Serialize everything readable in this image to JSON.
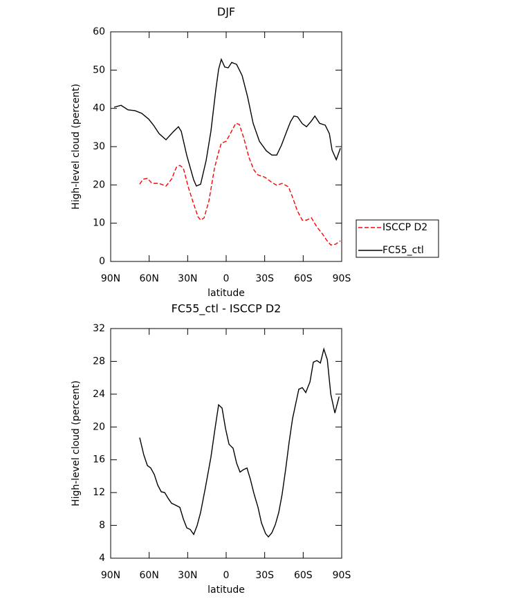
{
  "chart_data": [
    {
      "type": "line",
      "title": "DJF",
      "xlabel": "latitude",
      "ylabel": "High-level cloud (percent)",
      "xlim": [
        90,
        -90
      ],
      "xticks": [
        {
          "value": 90,
          "label": "90N"
        },
        {
          "value": 60,
          "label": "60N"
        },
        {
          "value": 30,
          "label": "30N"
        },
        0,
        {
          "value": -30,
          "label": "30S"
        },
        {
          "value": -60,
          "label": "60S"
        },
        {
          "value": -90,
          "label": "90S"
        }
      ],
      "ylim": [
        0,
        60
      ],
      "yticks": [
        0,
        10,
        20,
        30,
        40,
        50,
        60
      ],
      "grid": false,
      "legend": "right",
      "series": [
        {
          "name": "ISCCP D2",
          "color": "#ff0000",
          "dash": true,
          "x": [
            67.4,
            64.7,
            61.4,
            57.7,
            52.3,
            46.9,
            42.6,
            38.8,
            36.1,
            33.4,
            29.6,
            25.3,
            22.0,
            19.9,
            17.2,
            13.4,
            9.1,
            5.9,
            3.8,
            0,
            -3.2,
            -7.5,
            -10.2,
            -13.5,
            -17.8,
            -21.6,
            -24.8,
            -30.2,
            -35.0,
            -39.4,
            -43.6,
            -48.5,
            -51.7,
            -55.5,
            -59.3,
            -62.6,
            -66.4,
            -70.7,
            -75.0,
            -78.2,
            -81.5,
            -85.2,
            -89.0
          ],
          "values": [
            20.2,
            21.5,
            21.7,
            20.4,
            20.4,
            19.7,
            21.5,
            24.6,
            25.1,
            24.4,
            19.5,
            15.0,
            11.7,
            10.8,
            11.4,
            15.9,
            24.4,
            28.6,
            30.9,
            31.4,
            33.4,
            36.1,
            35.8,
            32.5,
            27.1,
            23.9,
            22.6,
            22.0,
            20.8,
            19.9,
            20.4,
            19.5,
            16.8,
            13.2,
            10.8,
            10.8,
            11.4,
            9.0,
            7.2,
            5.6,
            4.3,
            4.5,
            5.4
          ]
        },
        {
          "name": "FC55_ctl",
          "color": "#000000",
          "dash": false,
          "x": [
            87.3,
            81.9,
            76.5,
            71.1,
            65.8,
            60.4,
            56.6,
            52.3,
            46.9,
            41.5,
            37.2,
            35.0,
            30.7,
            25.3,
            23.2,
            19.9,
            15.6,
            11.9,
            8.1,
            5.9,
            3.8,
            1.1,
            -1.6,
            -4.3,
            -8.1,
            -12.4,
            -16.7,
            -21.0,
            -25.9,
            -31.3,
            -35.6,
            -39.4,
            -43.1,
            -47.4,
            -50.1,
            -52.8,
            -55.6,
            -59.3,
            -62.6,
            -66.4,
            -69.1,
            -72.8,
            -77.2,
            -80.4,
            -82.5,
            -85.8,
            -89.0
          ],
          "values": [
            40.3,
            40.8,
            39.6,
            39.4,
            38.7,
            37.2,
            35.6,
            33.4,
            31.8,
            33.8,
            35.2,
            34.0,
            27.7,
            21.3,
            19.7,
            20.2,
            26.4,
            34.0,
            44.8,
            50.2,
            52.8,
            50.8,
            50.6,
            52.0,
            51.5,
            48.6,
            43.0,
            36.1,
            31.4,
            28.9,
            27.8,
            27.8,
            30.4,
            34.2,
            36.5,
            38.0,
            37.8,
            36.0,
            35.2,
            36.7,
            38.0,
            36.1,
            35.6,
            33.4,
            29.1,
            26.6,
            29.6
          ]
        }
      ]
    },
    {
      "type": "line",
      "title": "FC55_ctl - ISCCP D2",
      "xlabel": "latitude",
      "ylabel": "High-level cloud (percent)",
      "xlim": [
        90,
        -90
      ],
      "xticks": [
        {
          "value": 90,
          "label": "90N"
        },
        {
          "value": 60,
          "label": "60N"
        },
        {
          "value": 30,
          "label": "30N"
        },
        0,
        {
          "value": -30,
          "label": "30S"
        },
        {
          "value": -60,
          "label": "60S"
        },
        {
          "value": -90,
          "label": "90S"
        }
      ],
      "ylim": [
        4,
        32
      ],
      "yticks": [
        4,
        8,
        12,
        16,
        20,
        24,
        28,
        32
      ],
      "grid": false,
      "series": [
        {
          "color": "#000000",
          "dash": false,
          "x": [
            67.4,
            64.2,
            61.4,
            58.8,
            56.0,
            53.3,
            50.6,
            47.9,
            45.2,
            42.6,
            39.9,
            36.1,
            33.4,
            30.7,
            28.0,
            25.3,
            22.6,
            19.9,
            16.2,
            11.9,
            8.6,
            5.9,
            3.2,
            0.5,
            -2.2,
            -5.4,
            -8.1,
            -10.8,
            -13.5,
            -16.2,
            -18.9,
            -21.6,
            -24.8,
            -27.5,
            -30.7,
            -32.9,
            -35.6,
            -38.3,
            -41.0,
            -43.6,
            -46.4,
            -49.0,
            -51.7,
            -54.4,
            -56.6,
            -59.3,
            -62.0,
            -65.3,
            -67.9,
            -70.7,
            -73.4,
            -76.1,
            -78.8,
            -81.5,
            -84.7,
            -88.0
          ],
          "values": [
            18.7,
            16.6,
            15.3,
            15.0,
            14.2,
            12.9,
            12.1,
            12.0,
            11.3,
            10.7,
            10.5,
            10.2,
            8.8,
            7.7,
            7.5,
            6.9,
            8.0,
            9.6,
            12.6,
            16.3,
            19.9,
            22.7,
            22.3,
            19.8,
            17.9,
            17.4,
            15.6,
            14.5,
            14.8,
            15.0,
            13.6,
            11.9,
            10.2,
            8.3,
            7.0,
            6.6,
            7.1,
            8.1,
            9.6,
            11.8,
            14.9,
            18.1,
            21.0,
            23.0,
            24.6,
            24.8,
            24.2,
            25.5,
            27.9,
            28.1,
            27.8,
            29.5,
            28.2,
            24.0,
            21.7,
            23.7
          ]
        }
      ]
    }
  ]
}
